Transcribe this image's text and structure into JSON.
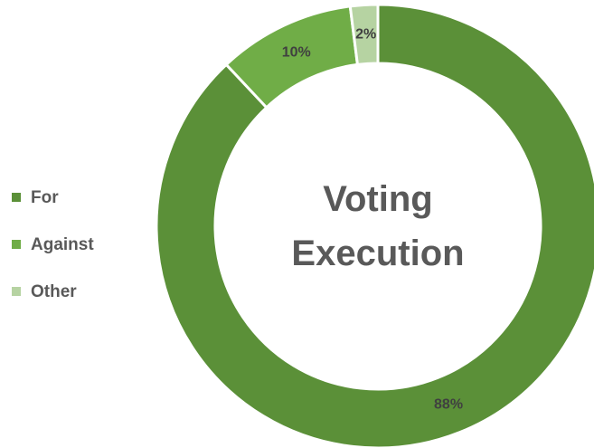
{
  "chart_data": {
    "type": "donut",
    "title": "Voting Execution",
    "categories": [
      "For",
      "Against",
      "Other"
    ],
    "values": [
      88,
      10,
      2
    ],
    "value_labels": [
      "88%",
      "10%",
      "2%"
    ],
    "colors": [
      "#5b9038",
      "#70ad47",
      "#b6d3a2"
    ],
    "legend": "left"
  }
}
